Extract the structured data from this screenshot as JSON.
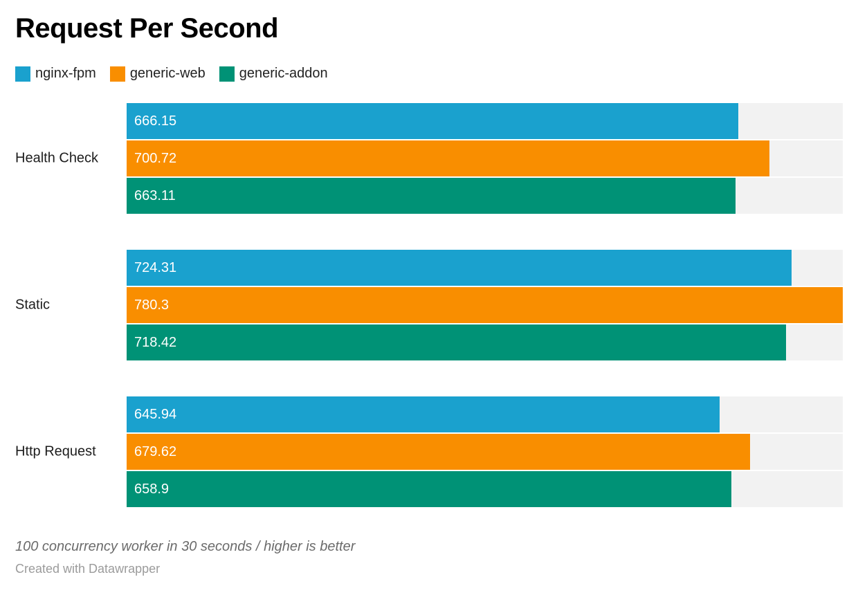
{
  "header": {
    "title": "Request Per Second"
  },
  "chart_data": {
    "type": "bar",
    "orientation": "horizontal",
    "title": "Request Per Second",
    "categories": [
      "Health Check",
      "Static",
      "Http Request"
    ],
    "series": [
      {
        "name": "nginx-fpm",
        "color": "#1aa1ce",
        "values": [
          666.15,
          724.31,
          645.94
        ]
      },
      {
        "name": "generic-web",
        "color": "#f98e00",
        "values": [
          700.72,
          780.3,
          679.62
        ]
      },
      {
        "name": "generic-addon",
        "color": "#009276",
        "values": [
          663.11,
          718.42,
          658.9
        ]
      }
    ],
    "xlim": [
      0,
      780.3
    ],
    "value_labels": true,
    "grid": false,
    "legend_position": "top",
    "track_color": "#f2f2f2",
    "value_label_color": "#ffffff"
  },
  "footer": {
    "note": "100 concurrency worker in 30 seconds / higher is better",
    "attribution": "Created with Datawrapper"
  }
}
